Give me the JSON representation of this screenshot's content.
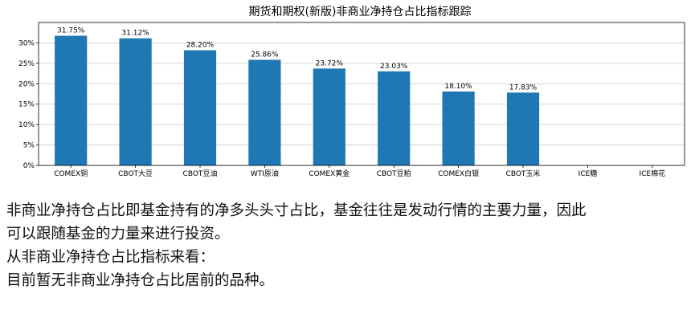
{
  "chart_data": {
    "type": "bar",
    "title": "期货和期权(新版)非商业净持仓占比指标跟踪",
    "xlabel": "",
    "ylabel": "",
    "categories": [
      "COMEX铜",
      "CBOT大豆",
      "CBOT豆油",
      "WTI原油",
      "COMEX黄金",
      "CBOT豆粕",
      "COMEX白银",
      "CBOT玉米",
      "ICE糖",
      "ICE棉花"
    ],
    "values": [
      31.75,
      31.12,
      28.2,
      25.86,
      23.72,
      23.03,
      18.1,
      17.83,
      null,
      null
    ],
    "value_labels": [
      "31.75%",
      "31.12%",
      "28.20%",
      "25.86%",
      "23.72%",
      "23.03%",
      "18.10%",
      "17.83%",
      "",
      ""
    ],
    "ylim": [
      0,
      35
    ],
    "yticks": [
      0,
      5,
      10,
      15,
      20,
      25,
      30
    ],
    "ytick_labels": [
      "0%",
      "5%",
      "10%",
      "15%",
      "20%",
      "25%",
      "30%"
    ],
    "grid": true,
    "bar_color": "#1f77b4"
  },
  "text": {
    "line1": "非商业净持仓占比即基金持有的净多头头寸占比，基金往往是发动行情的主要力量，因此",
    "line2": "可以跟随基金的力量来进行投资。",
    "line3": "从非商业净持仓占比指标来看：",
    "line4": "目前暂无非商业净持仓占比居前的品种。"
  }
}
